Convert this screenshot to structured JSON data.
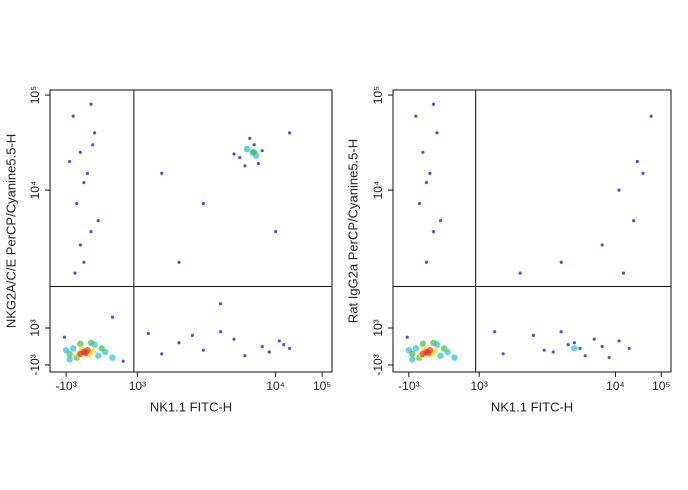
{
  "chart_data": [
    {
      "type": "scatter",
      "x_label": "NK1.1 FITC-H",
      "y_label": "NKG2A/C/E PerCP/Cyanine5.5-H",
      "xlim": [
        -2000,
        130000
      ],
      "ylim": [
        -1200,
        110000
      ],
      "xticks": [
        {
          "value": -1000,
          "label": "-10³"
        },
        {
          "value": 1000,
          "label": "10³"
        },
        {
          "value": 10000,
          "label": "10⁴"
        },
        {
          "value": 100000,
          "label": "10⁵"
        }
      ],
      "yticks": [
        {
          "value": -1000,
          "label": "-10³"
        },
        {
          "value": 1000,
          "label": "10³"
        },
        {
          "value": 10000,
          "label": "10⁴"
        },
        {
          "value": 100000,
          "label": "10⁵"
        }
      ],
      "gates": {
        "x": 900,
        "y": 2000
      },
      "series": [
        {
          "color": "#1a2ad0",
          "x": [
            -500,
            -300,
            -700,
            -400,
            -600,
            -200,
            -800,
            -300,
            -500,
            -100,
            -600,
            -900,
            -250,
            -750,
            2000,
            3000,
            5000,
            8000,
            1500,
            12000,
            20000,
            4000,
            6000,
            2500,
            9000,
            15000,
            6000,
            7000,
            5500,
            8000,
            6500,
            5000,
            7500,
            2000,
            3000,
            10000,
            1500,
            20000,
            4000,
            1200,
            -1100,
            300,
            600
          ],
          "values": [
            3000,
            5000,
            8000,
            15000,
            25000,
            40000,
            60000,
            80000,
            12000,
            6000,
            4000,
            20000,
            30000,
            2500,
            200,
            -200,
            400,
            0,
            -400,
            300,
            -100,
            800,
            -500,
            600,
            -300,
            100,
            18000,
            30000,
            22000,
            26000,
            35000,
            24000,
            19000,
            3000,
            8000,
            5000,
            15000,
            40000,
            1500,
            700,
            500,
            1200,
            -800
          ]
        },
        {
          "color": "#20c0e0",
          "x": [
            -800,
            -100,
            -1000,
            100,
            -200,
            6800,
            7200,
            6200,
            -900,
            300
          ],
          "values": [
            -100,
            -500,
            -200,
            -300,
            100,
            25000,
            23000,
            27000,
            -700,
            -600
          ]
        },
        {
          "color": "#40c040",
          "x": [
            -700,
            0,
            -900,
            -300,
            -600,
            7000
          ],
          "values": [
            -600,
            -100,
            -400,
            200,
            150,
            25000
          ]
        },
        {
          "color": "#f0e020",
          "x": [
            -650,
            -250,
            -550,
            -350
          ],
          "values": [
            -500,
            -250,
            -150,
            -450
          ]
        },
        {
          "color": "#e8301c",
          "x": [
            -500,
            -400,
            -600,
            -450
          ],
          "values": [
            -300,
            -200,
            -400,
            -350
          ]
        }
      ]
    },
    {
      "type": "scatter",
      "x_label": "NK1.1 FITC-H",
      "y_label": "Rat IgG2a PerCP/Cyanine5.5-H",
      "xlim": [
        -2000,
        130000
      ],
      "ylim": [
        -1200,
        110000
      ],
      "xticks": [
        {
          "value": -1000,
          "label": "-10³"
        },
        {
          "value": 1000,
          "label": "10³"
        },
        {
          "value": 10000,
          "label": "10⁴"
        },
        {
          "value": 100000,
          "label": "10⁵"
        }
      ],
      "yticks": [
        {
          "value": -1000,
          "label": "-10³"
        },
        {
          "value": 1000,
          "label": "10³"
        },
        {
          "value": 10000,
          "label": "10⁴"
        },
        {
          "value": 100000,
          "label": "10⁵"
        }
      ],
      "gates": {
        "x": 900,
        "y": 2000
      },
      "series": [
        {
          "color": "#1a2ad0",
          "x": [
            -500,
            -300,
            -700,
            -400,
            -600,
            -200,
            -800,
            -300,
            -500,
            -100,
            3000,
            5000,
            8000,
            1500,
            12000,
            20000,
            4000,
            6000,
            5500,
            4500,
            7000,
            2500,
            3500,
            9000,
            15000,
            25000,
            40000,
            8000,
            30000,
            12000,
            4000,
            2000,
            60000,
            1300,
            -1100
          ],
          "values": [
            3000,
            5000,
            8000,
            15000,
            25000,
            40000,
            60000,
            80000,
            12000,
            6000,
            -200,
            200,
            0,
            -400,
            300,
            -100,
            800,
            -500,
            -100,
            100,
            400,
            600,
            -300,
            -600,
            2500,
            6000,
            15000,
            4000,
            20000,
            10000,
            3000,
            2500,
            60000,
            800,
            500
          ]
        },
        {
          "color": "#20c0e0",
          "x": [
            -800,
            -100,
            -1000,
            100,
            -200,
            -900,
            300,
            5000
          ],
          "values": [
            -100,
            -500,
            -200,
            -300,
            100,
            -700,
            -600,
            -100
          ]
        },
        {
          "color": "#40c040",
          "x": [
            -700,
            0,
            -900,
            -300,
            -600
          ],
          "values": [
            -600,
            -100,
            -400,
            200,
            150
          ]
        },
        {
          "color": "#f0e020",
          "x": [
            -650,
            -250,
            -550,
            -350
          ],
          "values": [
            -500,
            -250,
            -150,
            -450
          ]
        },
        {
          "color": "#e8301c",
          "x": [
            -500,
            -400,
            -600,
            -450
          ],
          "values": [
            -300,
            -200,
            -400,
            -350
          ]
        }
      ]
    }
  ]
}
